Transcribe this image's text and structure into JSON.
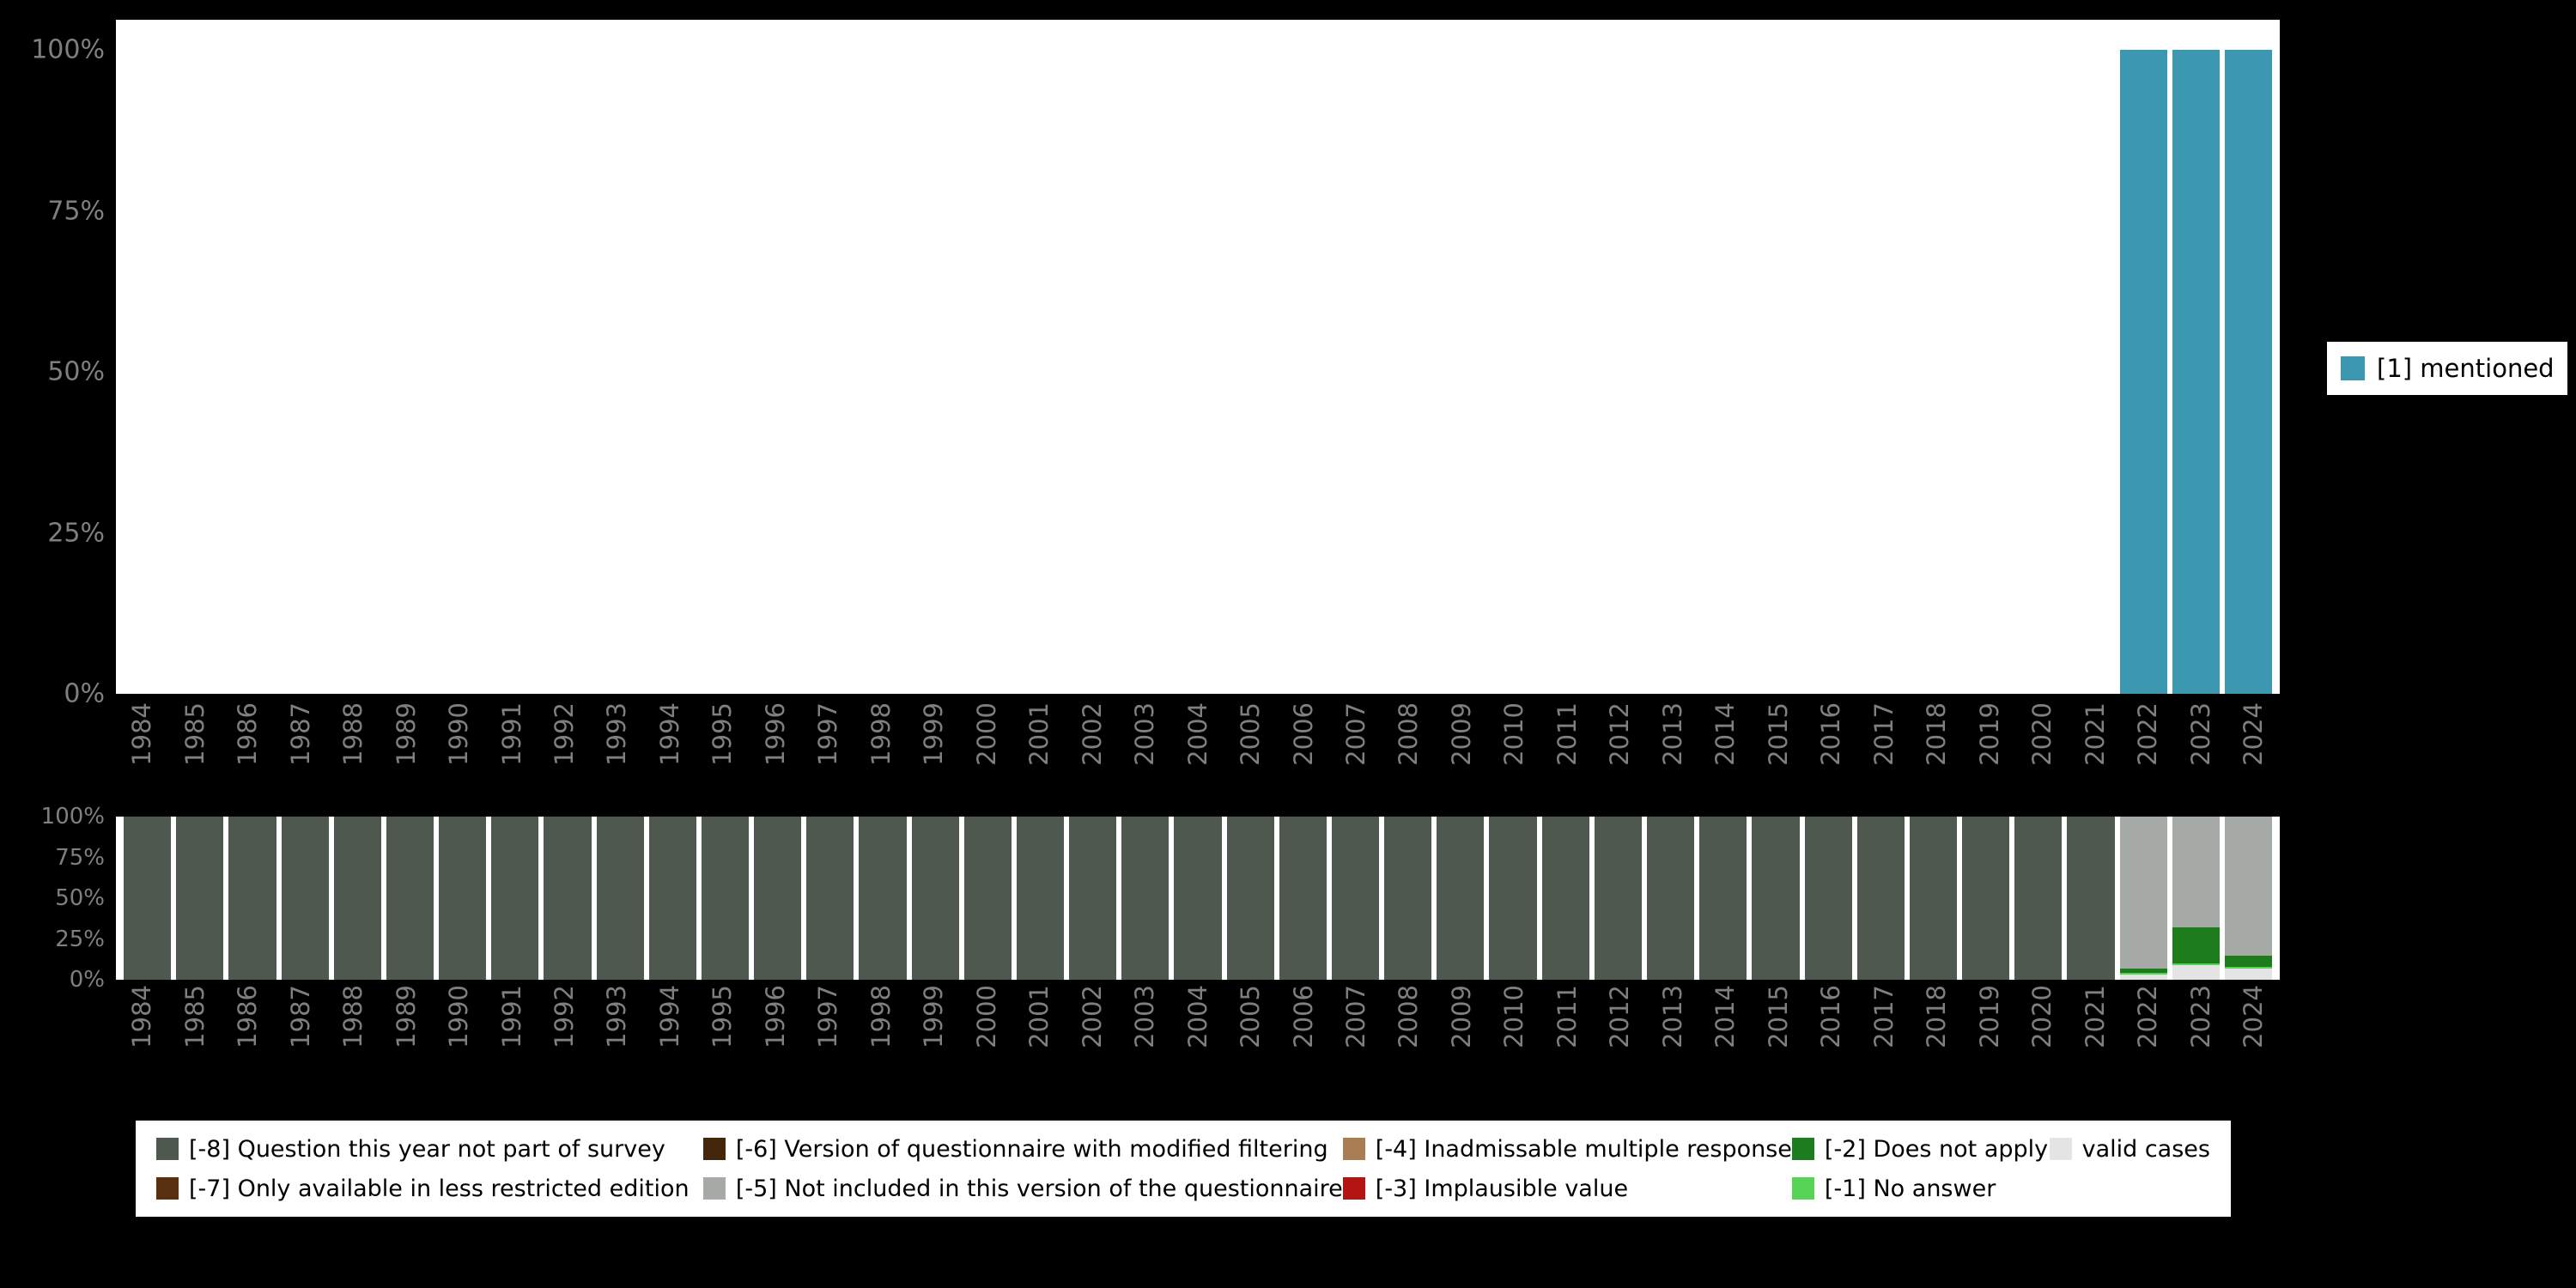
{
  "colors": {
    "background": "#000000",
    "panel": "#ffffff",
    "axis_text": "#7f7f7f",
    "mentioned": "#3c97b0"
  },
  "axes": {
    "top_yticks": [
      "100%",
      "75%",
      "50%",
      "25%",
      "0%"
    ],
    "bottom_yticks": [
      "100%",
      "75%",
      "50%",
      "25%",
      "0%"
    ]
  },
  "legend_right": {
    "label": "[1] mentioned",
    "color": "#3c97b0"
  },
  "legend_bottom": {
    "items": [
      {
        "key": "-8",
        "label": "[-8] Question this year not part of survey",
        "color": "#4e584f"
      },
      {
        "key": "-6",
        "label": "[-6] Version of questionnaire with modified filtering",
        "color": "#44260a"
      },
      {
        "key": "-4",
        "label": "[-4] Inadmissable multiple response",
        "color": "#a87e52"
      },
      {
        "key": "-2",
        "label": "[-2] Does not apply",
        "color": "#1d7d1d"
      },
      {
        "key": "valid",
        "label": "valid cases",
        "color": "#e4e4e4"
      },
      {
        "key": "-7",
        "label": "[-7] Only available in less restricted edition",
        "color": "#5a3110"
      },
      {
        "key": "-5",
        "label": "[-5] Not included in this version of the questionnaire",
        "color": "#a6aaa6"
      },
      {
        "key": "-3",
        "label": "[-3] Implausible value",
        "color": "#b31414"
      },
      {
        "key": "-1",
        "label": "[-1] No answer",
        "color": "#55d455"
      }
    ]
  },
  "chart_data": [
    {
      "type": "bar",
      "title": "",
      "xlabel": "",
      "ylabel": "",
      "ylim": [
        0,
        100
      ],
      "yticks": [
        "0%",
        "25%",
        "50%",
        "75%",
        "100%"
      ],
      "legend_position": "right",
      "categories": [
        "1984",
        "1985",
        "1986",
        "1987",
        "1988",
        "1989",
        "1990",
        "1991",
        "1992",
        "1993",
        "1994",
        "1995",
        "1996",
        "1997",
        "1998",
        "1999",
        "2000",
        "2001",
        "2002",
        "2003",
        "2004",
        "2005",
        "2006",
        "2007",
        "2008",
        "2009",
        "2010",
        "2011",
        "2012",
        "2013",
        "2014",
        "2015",
        "2016",
        "2017",
        "2018",
        "2019",
        "2020",
        "2021",
        "2022",
        "2023",
        "2024"
      ],
      "series": [
        {
          "name": "[1] mentioned",
          "color": "#3c97b0",
          "values": [
            0,
            0,
            0,
            0,
            0,
            0,
            0,
            0,
            0,
            0,
            0,
            0,
            0,
            0,
            0,
            0,
            0,
            0,
            0,
            0,
            0,
            0,
            0,
            0,
            0,
            0,
            0,
            0,
            0,
            0,
            0,
            0,
            0,
            0,
            0,
            0,
            0,
            0,
            100,
            100,
            100
          ]
        }
      ]
    },
    {
      "type": "stacked-bar",
      "title": "",
      "xlabel": "",
      "ylabel": "",
      "ylim": [
        0,
        100
      ],
      "yticks": [
        "0%",
        "25%",
        "50%",
        "75%",
        "100%"
      ],
      "categories": [
        "1984",
        "1985",
        "1986",
        "1987",
        "1988",
        "1989",
        "1990",
        "1991",
        "1992",
        "1993",
        "1994",
        "1995",
        "1996",
        "1997",
        "1998",
        "1999",
        "2000",
        "2001",
        "2002",
        "2003",
        "2004",
        "2005",
        "2006",
        "2007",
        "2008",
        "2009",
        "2010",
        "2011",
        "2012",
        "2013",
        "2014",
        "2015",
        "2016",
        "2017",
        "2018",
        "2019",
        "2020",
        "2021",
        "2022",
        "2023",
        "2024"
      ],
      "stack_order_top_to_bottom": [
        "-5",
        "-2",
        "-1",
        "valid",
        "-8"
      ],
      "series": [
        {
          "key": "-8",
          "name": "[-8] Question this year not part of survey",
          "color": "#4e584f",
          "values": [
            100,
            100,
            100,
            100,
            100,
            100,
            100,
            100,
            100,
            100,
            100,
            100,
            100,
            100,
            100,
            100,
            100,
            100,
            100,
            100,
            100,
            100,
            100,
            100,
            100,
            100,
            100,
            100,
            100,
            100,
            100,
            100,
            100,
            100,
            100,
            100,
            100,
            100,
            0,
            0,
            0
          ]
        },
        {
          "key": "-5",
          "name": "[-5] Not included in this version of the questionnaire",
          "color": "#a6aaa6",
          "values": [
            0,
            0,
            0,
            0,
            0,
            0,
            0,
            0,
            0,
            0,
            0,
            0,
            0,
            0,
            0,
            0,
            0,
            0,
            0,
            0,
            0,
            0,
            0,
            0,
            0,
            0,
            0,
            0,
            0,
            0,
            0,
            0,
            0,
            0,
            0,
            0,
            0,
            0,
            93,
            68,
            85
          ]
        },
        {
          "key": "-2",
          "name": "[-2] Does not apply",
          "color": "#1d7d1d",
          "values": [
            0,
            0,
            0,
            0,
            0,
            0,
            0,
            0,
            0,
            0,
            0,
            0,
            0,
            0,
            0,
            0,
            0,
            0,
            0,
            0,
            0,
            0,
            0,
            0,
            0,
            0,
            0,
            0,
            0,
            0,
            0,
            0,
            0,
            0,
            0,
            0,
            0,
            0,
            3,
            22,
            7
          ]
        },
        {
          "key": "-1",
          "name": "[-1] No answer",
          "color": "#55d455",
          "values": [
            0,
            0,
            0,
            0,
            0,
            0,
            0,
            0,
            0,
            0,
            0,
            0,
            0,
            0,
            0,
            0,
            0,
            0,
            0,
            0,
            0,
            0,
            0,
            0,
            0,
            0,
            0,
            0,
            0,
            0,
            0,
            0,
            0,
            0,
            0,
            0,
            0,
            0,
            1,
            1,
            1
          ]
        },
        {
          "key": "valid",
          "name": "valid cases",
          "color": "#e4e4e4",
          "values": [
            0,
            0,
            0,
            0,
            0,
            0,
            0,
            0,
            0,
            0,
            0,
            0,
            0,
            0,
            0,
            0,
            0,
            0,
            0,
            0,
            0,
            0,
            0,
            0,
            0,
            0,
            0,
            0,
            0,
            0,
            0,
            0,
            0,
            0,
            0,
            0,
            0,
            0,
            3,
            9,
            7
          ]
        }
      ]
    }
  ]
}
